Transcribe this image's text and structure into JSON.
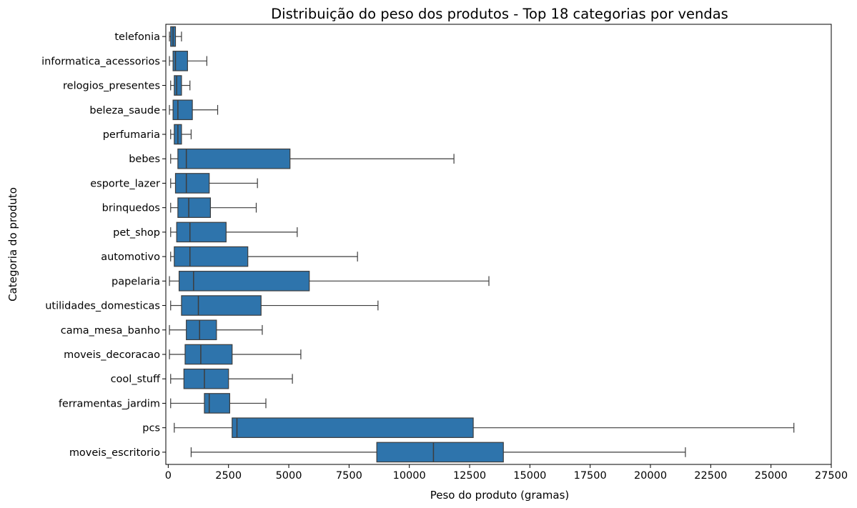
{
  "chart_data": {
    "type": "boxplot",
    "orientation": "horizontal",
    "title": "Distribuição do peso dos produtos - Top 18 categorias por vendas",
    "xlabel": "Peso do produto (gramas)",
    "ylabel": "Categoria do produto",
    "xlim": [
      -100,
      27500
    ],
    "xticks": [
      0,
      2500,
      5000,
      7500,
      10000,
      12500,
      15000,
      17500,
      20000,
      22500,
      25000,
      27500
    ],
    "box_color": "#2e74ac",
    "line_color": "#3d3d3d",
    "grid": false,
    "categories": [
      {
        "name": "telefonia",
        "whisker_low": 50,
        "q1": 100,
        "median": 200,
        "q3": 300,
        "whisker_high": 550
      },
      {
        "name": "informatica_acessorios",
        "whisker_low": 50,
        "q1": 200,
        "median": 300,
        "q3": 800,
        "whisker_high": 1600
      },
      {
        "name": "relogios_presentes",
        "whisker_low": 100,
        "q1": 250,
        "median": 350,
        "q3": 550,
        "whisker_high": 900
      },
      {
        "name": "beleza_saude",
        "whisker_low": 50,
        "q1": 200,
        "median": 400,
        "q3": 1000,
        "whisker_high": 2050
      },
      {
        "name": "perfumaria",
        "whisker_low": 100,
        "q1": 250,
        "median": 400,
        "q3": 550,
        "whisker_high": 950
      },
      {
        "name": "bebes",
        "whisker_low": 100,
        "q1": 400,
        "median": 750,
        "q3": 5050,
        "whisker_high": 11850
      },
      {
        "name": "esporte_lazer",
        "whisker_low": 100,
        "q1": 300,
        "median": 750,
        "q3": 1700,
        "whisker_high": 3700
      },
      {
        "name": "brinquedos",
        "whisker_low": 100,
        "q1": 400,
        "median": 850,
        "q3": 1750,
        "whisker_high": 3650
      },
      {
        "name": "pet_shop",
        "whisker_low": 100,
        "q1": 350,
        "median": 900,
        "q3": 2400,
        "whisker_high": 5350
      },
      {
        "name": "automotivo",
        "whisker_low": 100,
        "q1": 250,
        "median": 900,
        "q3": 3300,
        "whisker_high": 7850
      },
      {
        "name": "papelaria",
        "whisker_low": 50,
        "q1": 450,
        "median": 1050,
        "q3": 5850,
        "whisker_high": 13300
      },
      {
        "name": "utilidades_domesticas",
        "whisker_low": 100,
        "q1": 550,
        "median": 1250,
        "q3": 3850,
        "whisker_high": 8700
      },
      {
        "name": "cama_mesa_banho",
        "whisker_low": 50,
        "q1": 750,
        "median": 1300,
        "q3": 2000,
        "whisker_high": 3900
      },
      {
        "name": "moveis_decoracao",
        "whisker_low": 50,
        "q1": 700,
        "median": 1350,
        "q3": 2650,
        "whisker_high": 5500
      },
      {
        "name": "cool_stuff",
        "whisker_low": 100,
        "q1": 650,
        "median": 1500,
        "q3": 2500,
        "whisker_high": 5150
      },
      {
        "name": "ferramentas_jardim",
        "whisker_low": 100,
        "q1": 1500,
        "median": 1700,
        "q3": 2550,
        "whisker_high": 4050
      },
      {
        "name": "pcs",
        "whisker_low": 250,
        "q1": 2650,
        "median": 2850,
        "q3": 12650,
        "whisker_high": 25950
      },
      {
        "name": "moveis_escritorio",
        "whisker_low": 950,
        "q1": 8650,
        "median": 11000,
        "q3": 13900,
        "whisker_high": 21450
      }
    ]
  }
}
